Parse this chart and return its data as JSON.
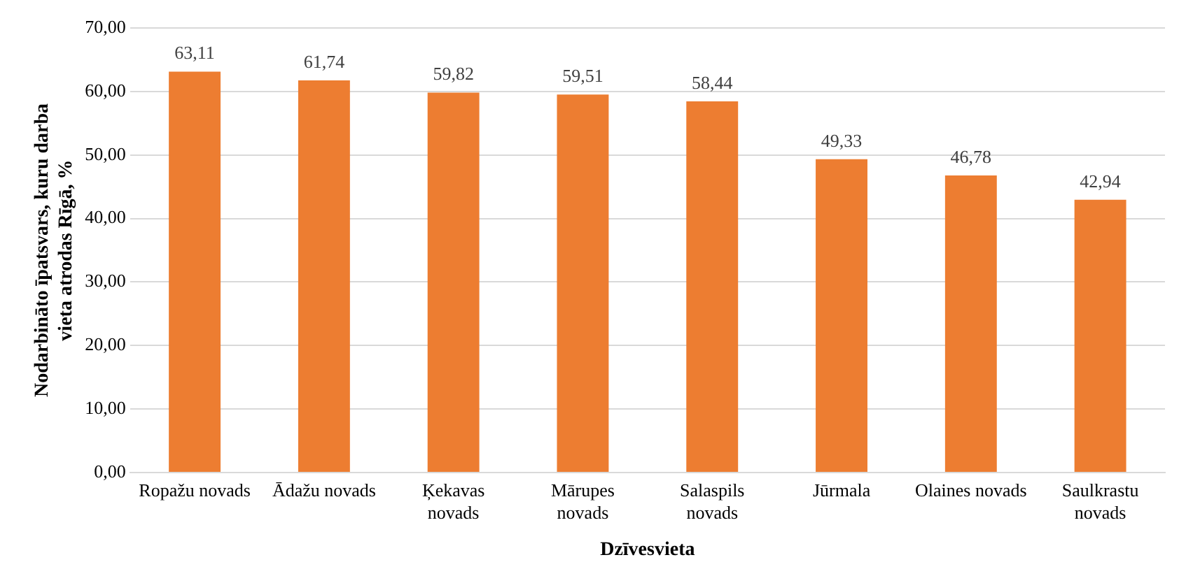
{
  "chart_data": {
    "type": "bar",
    "xlabel": "Dzīvesvieta",
    "ylabel": "Nodarbināto īpatsvars, kuru darba vieta atrodas Rīgā, %",
    "categories": [
      "Ropažu novads",
      "Ādažu novads",
      "Ķekavas novads",
      "Mārupes novads",
      "Salaspils novads",
      "Jūrmala",
      "Olaines novads",
      "Saulkrastu novads"
    ],
    "values": [
      63.11,
      61.74,
      59.82,
      59.51,
      58.44,
      49.33,
      46.78,
      42.94
    ],
    "value_labels": [
      "63,11",
      "61,74",
      "59,82",
      "59,51",
      "58,44",
      "49,33",
      "46,78",
      "42,94"
    ],
    "color": "#ed7d31",
    "ylim": [
      0,
      70
    ],
    "yticks": [
      {
        "value": 0,
        "label": "0,00"
      },
      {
        "value": 10,
        "label": "10,00"
      },
      {
        "value": 20,
        "label": "20,00"
      },
      {
        "value": 30,
        "label": "30,00"
      },
      {
        "value": 40,
        "label": "40,00"
      },
      {
        "value": 50,
        "label": "50,00"
      },
      {
        "value": 60,
        "label": "60,00"
      },
      {
        "value": 70,
        "label": "70,00"
      }
    ],
    "grid": "y",
    "legend": false
  }
}
